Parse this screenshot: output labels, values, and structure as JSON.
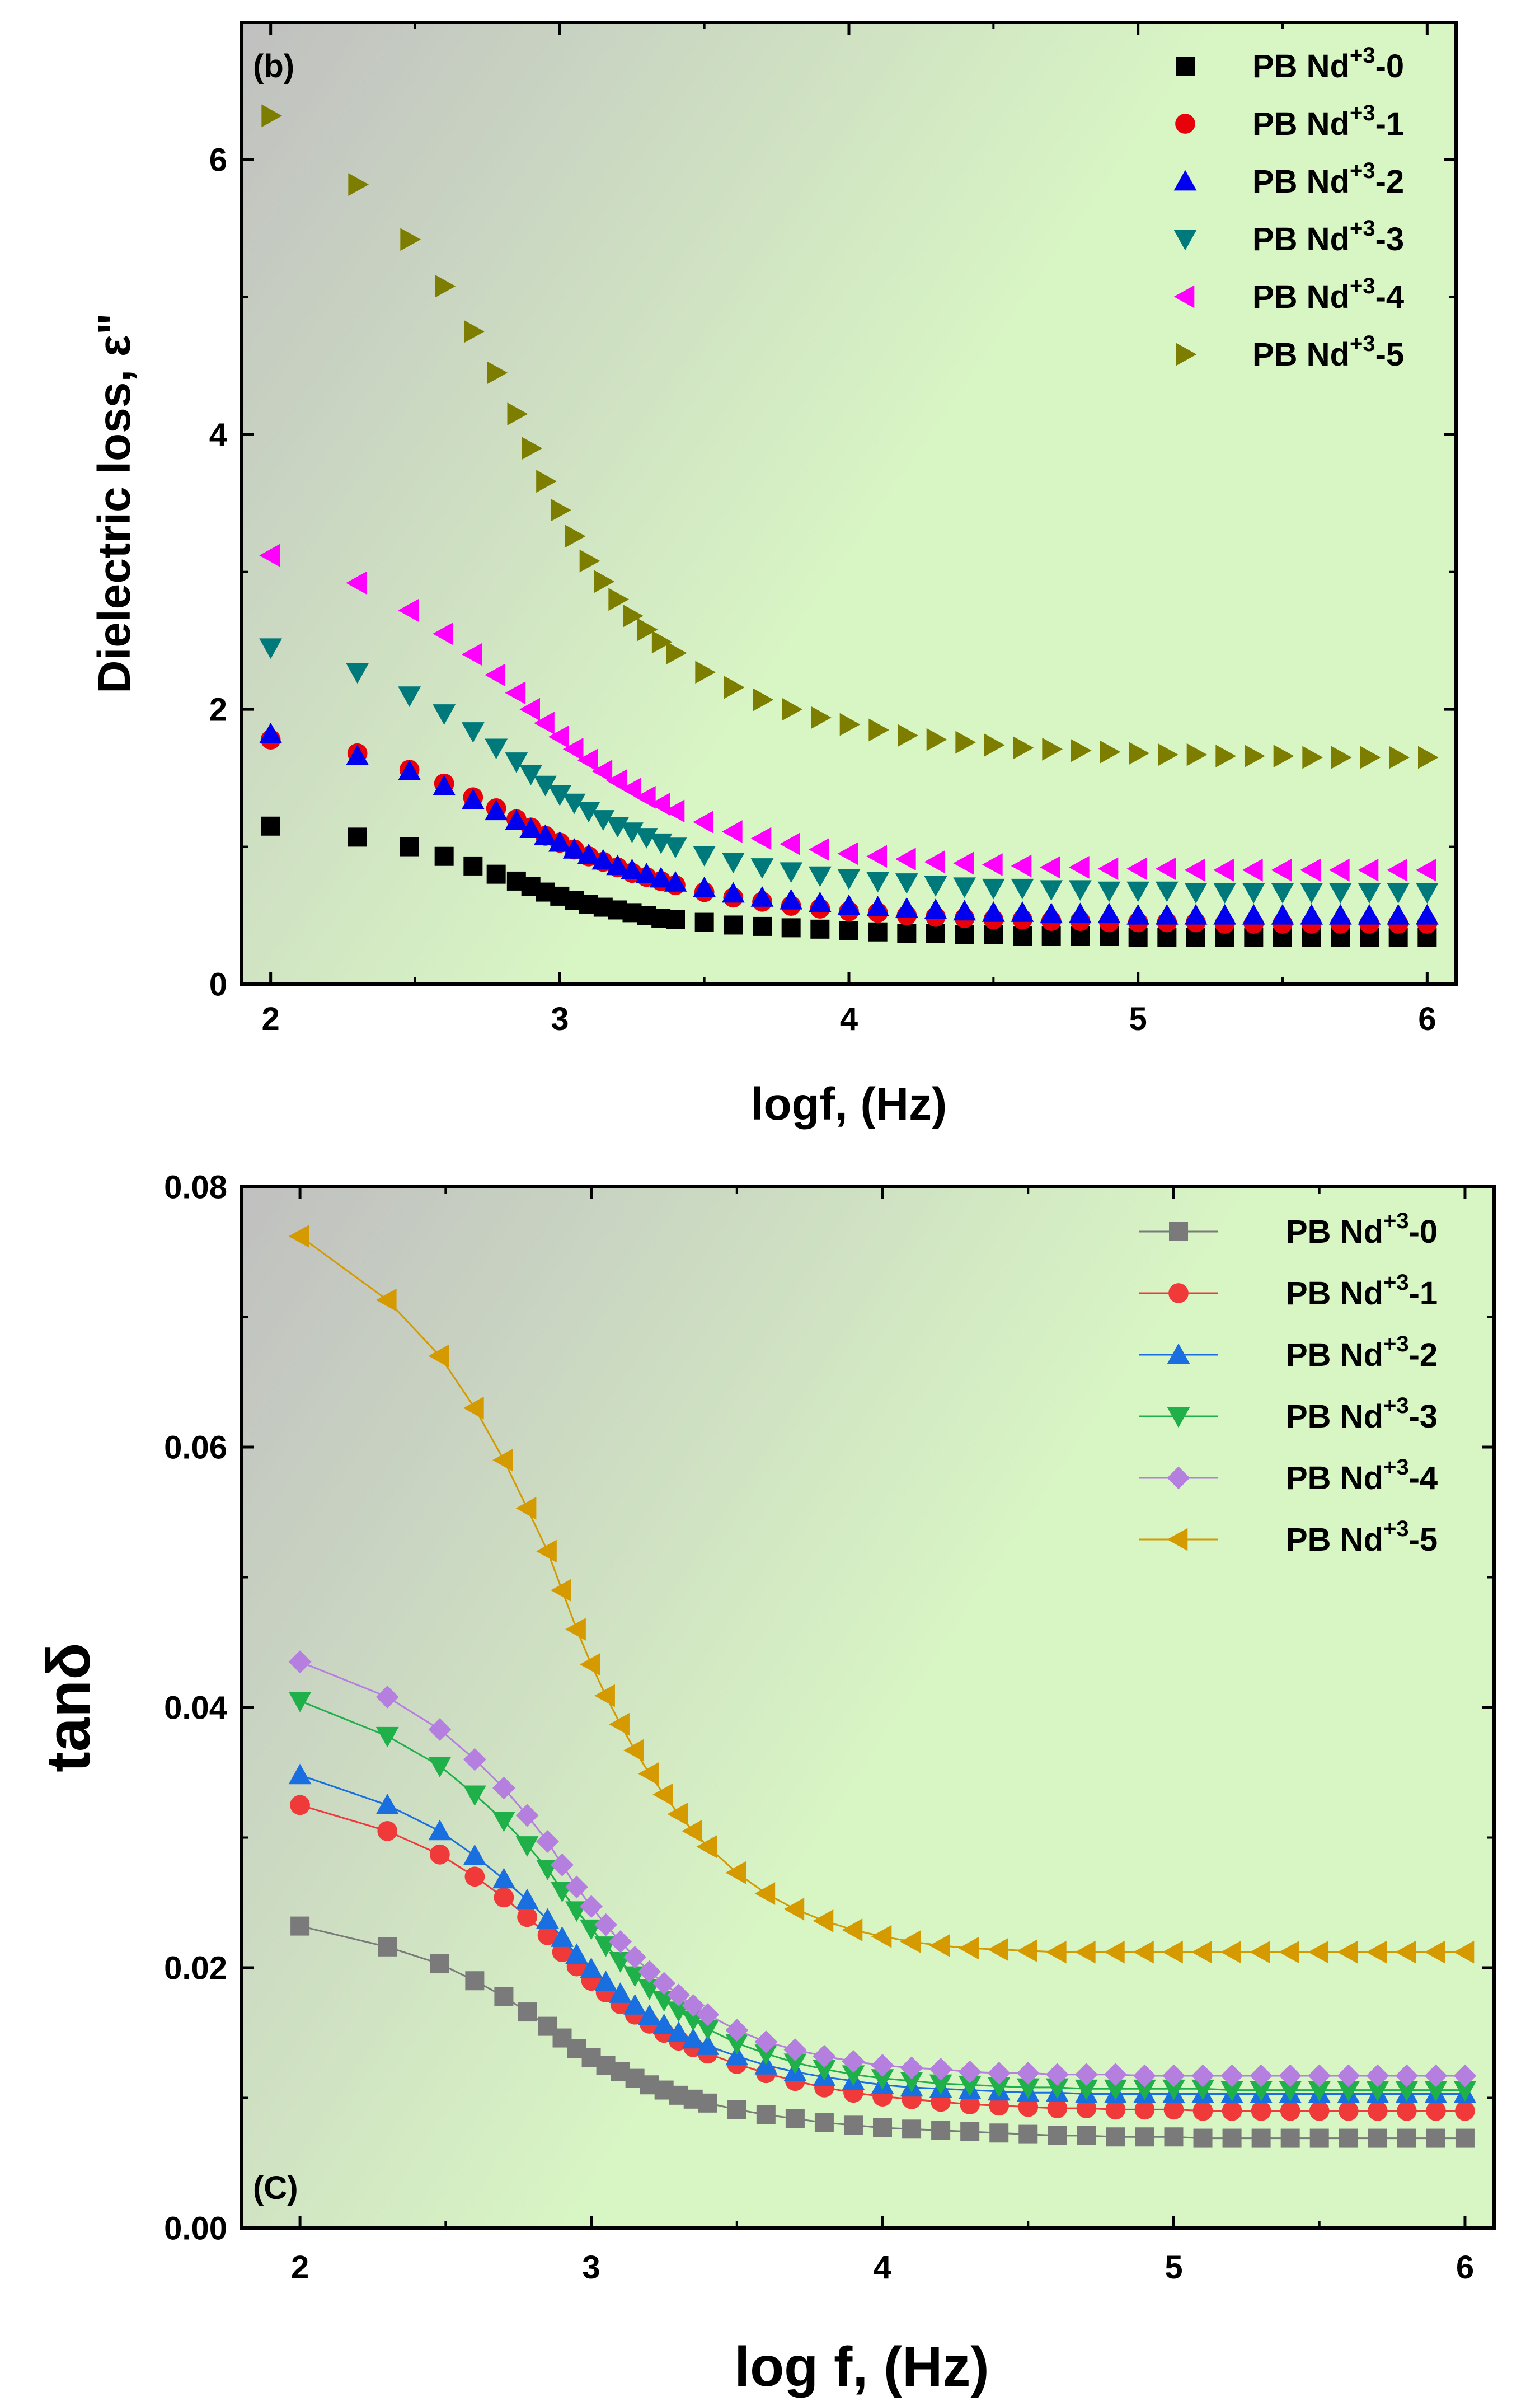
{
  "chart_data": [
    {
      "type": "scatter",
      "panel_label": "(b)",
      "xlabel": "logf, (Hz)",
      "ylabel": "Dielectric loss, ε\"",
      "xlim": [
        1.9,
        6.1
      ],
      "ylim": [
        0,
        7
      ],
      "xticks": [
        2,
        3,
        4,
        5,
        6
      ],
      "yticks": [
        0,
        2,
        4,
        6
      ],
      "grid": false,
      "legend_position": "top-right",
      "background_gradient": [
        "#c0c0c0",
        "#d8f5c4"
      ],
      "legend_title_parts": {
        "prefix": "PB Nd",
        "superscript": "+3"
      },
      "x": [
        2.0,
        2.3,
        2.48,
        2.6,
        2.7,
        2.78,
        2.85,
        2.9,
        2.95,
        3.0,
        3.05,
        3.1,
        3.15,
        3.2,
        3.25,
        3.3,
        3.35,
        3.4,
        3.5,
        3.6,
        3.7,
        3.8,
        3.9,
        4.0,
        4.1,
        4.2,
        4.3,
        4.4,
        4.5,
        4.6,
        4.7,
        4.8,
        4.9,
        5.0,
        5.1,
        5.2,
        5.3,
        5.4,
        5.5,
        5.6,
        5.7,
        5.8,
        5.9,
        6.0
      ],
      "series": [
        {
          "name": "PB Nd+3-0",
          "marker": "square",
          "color": "#000000",
          "values": [
            1.15,
            1.07,
            1.0,
            0.93,
            0.86,
            0.8,
            0.75,
            0.71,
            0.67,
            0.64,
            0.61,
            0.58,
            0.56,
            0.54,
            0.52,
            0.5,
            0.48,
            0.47,
            0.45,
            0.43,
            0.42,
            0.41,
            0.4,
            0.39,
            0.38,
            0.37,
            0.37,
            0.36,
            0.36,
            0.35,
            0.35,
            0.35,
            0.35,
            0.34,
            0.34,
            0.34,
            0.34,
            0.34,
            0.34,
            0.34,
            0.34,
            0.34,
            0.34,
            0.34
          ]
        },
        {
          "name": "PB Nd+3-1",
          "marker": "circle",
          "color": "#e8000b",
          "values": [
            1.78,
            1.68,
            1.56,
            1.46,
            1.36,
            1.28,
            1.2,
            1.14,
            1.08,
            1.03,
            0.98,
            0.93,
            0.89,
            0.85,
            0.81,
            0.78,
            0.75,
            0.72,
            0.67,
            0.63,
            0.6,
            0.57,
            0.55,
            0.53,
            0.52,
            0.5,
            0.49,
            0.48,
            0.47,
            0.47,
            0.46,
            0.46,
            0.45,
            0.45,
            0.45,
            0.45,
            0.44,
            0.44,
            0.44,
            0.44,
            0.44,
            0.44,
            0.44,
            0.44
          ]
        },
        {
          "name": "PB Nd+3-2",
          "marker": "triangle-up",
          "color": "#0000ee",
          "values": [
            1.82,
            1.66,
            1.55,
            1.44,
            1.34,
            1.26,
            1.19,
            1.13,
            1.08,
            1.03,
            0.98,
            0.94,
            0.9,
            0.86,
            0.83,
            0.8,
            0.77,
            0.74,
            0.7,
            0.66,
            0.63,
            0.61,
            0.59,
            0.57,
            0.56,
            0.55,
            0.54,
            0.53,
            0.52,
            0.52,
            0.51,
            0.51,
            0.51,
            0.5,
            0.5,
            0.5,
            0.5,
            0.5,
            0.5,
            0.5,
            0.5,
            0.5,
            0.5,
            0.5
          ]
        },
        {
          "name": "PB Nd+3-3",
          "marker": "triangle-down",
          "color": "#00797a",
          "values": [
            2.45,
            2.27,
            2.1,
            1.97,
            1.84,
            1.72,
            1.62,
            1.53,
            1.45,
            1.38,
            1.32,
            1.26,
            1.2,
            1.15,
            1.11,
            1.07,
            1.03,
            1.0,
            0.94,
            0.89,
            0.85,
            0.82,
            0.79,
            0.77,
            0.75,
            0.74,
            0.72,
            0.71,
            0.7,
            0.7,
            0.69,
            0.69,
            0.68,
            0.68,
            0.68,
            0.67,
            0.67,
            0.67,
            0.67,
            0.67,
            0.67,
            0.67,
            0.67,
            0.67
          ]
        },
        {
          "name": "PB Nd+3-4",
          "marker": "triangle-left",
          "color": "#ff00ff",
          "values": [
            3.12,
            2.92,
            2.72,
            2.55,
            2.4,
            2.25,
            2.12,
            2.0,
            1.9,
            1.8,
            1.71,
            1.63,
            1.55,
            1.48,
            1.42,
            1.36,
            1.31,
            1.26,
            1.18,
            1.11,
            1.06,
            1.02,
            0.98,
            0.95,
            0.93,
            0.91,
            0.89,
            0.88,
            0.87,
            0.86,
            0.85,
            0.85,
            0.84,
            0.84,
            0.84,
            0.83,
            0.83,
            0.83,
            0.83,
            0.83,
            0.83,
            0.83,
            0.83,
            0.83
          ]
        },
        {
          "name": "PB Nd+3-5",
          "marker": "triangle-right",
          "color": "#7d7d00",
          "values": [
            6.32,
            5.82,
            5.42,
            5.08,
            4.75,
            4.45,
            4.15,
            3.9,
            3.66,
            3.45,
            3.26,
            3.08,
            2.93,
            2.8,
            2.68,
            2.58,
            2.49,
            2.41,
            2.27,
            2.16,
            2.07,
            2.0,
            1.94,
            1.89,
            1.85,
            1.81,
            1.78,
            1.76,
            1.74,
            1.72,
            1.71,
            1.7,
            1.69,
            1.68,
            1.67,
            1.67,
            1.66,
            1.66,
            1.66,
            1.65,
            1.65,
            1.65,
            1.65,
            1.65
          ]
        }
      ]
    },
    {
      "type": "line",
      "panel_label": "(C)",
      "xlabel": "log f, (Hz)",
      "ylabel": "tanδ",
      "xlim": [
        1.8,
        6.1
      ],
      "ylim": [
        0,
        0.08
      ],
      "xticks": [
        2,
        3,
        4,
        5,
        6
      ],
      "yticks": [
        0.0,
        0.02,
        0.04,
        0.06,
        0.08
      ],
      "ytick_labels": [
        "0.00",
        "0.02",
        "0.04",
        "0.06",
        "0.08"
      ],
      "grid": false,
      "legend_position": "top-right",
      "background_gradient": [
        "#c0c0c0",
        "#d8f5c4"
      ],
      "legend_title_parts": {
        "prefix": "PB Nd",
        "superscript": "+3"
      },
      "x": [
        2.0,
        2.3,
        2.48,
        2.6,
        2.7,
        2.78,
        2.85,
        2.9,
        2.95,
        3.0,
        3.05,
        3.1,
        3.15,
        3.2,
        3.25,
        3.3,
        3.35,
        3.4,
        3.5,
        3.6,
        3.7,
        3.8,
        3.9,
        4.0,
        4.1,
        4.2,
        4.3,
        4.4,
        4.5,
        4.6,
        4.7,
        4.8,
        4.9,
        5.0,
        5.1,
        5.2,
        5.3,
        5.4,
        5.5,
        5.6,
        5.7,
        5.8,
        5.9,
        6.0
      ],
      "series": [
        {
          "name": "PB Nd+3-0",
          "marker": "square",
          "color": "#7a7a7a",
          "values": [
            0.0232,
            0.0216,
            0.0203,
            0.019,
            0.0178,
            0.0166,
            0.0155,
            0.0146,
            0.0138,
            0.0131,
            0.0125,
            0.012,
            0.0115,
            0.011,
            0.0106,
            0.0102,
            0.0099,
            0.0096,
            0.0091,
            0.0087,
            0.0084,
            0.0081,
            0.0079,
            0.0077,
            0.0076,
            0.0075,
            0.0074,
            0.0073,
            0.0072,
            0.0071,
            0.0071,
            0.007,
            0.007,
            0.007,
            0.0069,
            0.0069,
            0.0069,
            0.0069,
            0.0069,
            0.0069,
            0.0069,
            0.0069,
            0.0069,
            0.0069
          ]
        },
        {
          "name": "PB Nd+3-1",
          "marker": "circle",
          "color": "#f03a3a",
          "values": [
            0.0325,
            0.0305,
            0.0287,
            0.027,
            0.0254,
            0.0239,
            0.0225,
            0.0212,
            0.0201,
            0.019,
            0.0181,
            0.0172,
            0.0164,
            0.0157,
            0.015,
            0.0144,
            0.0139,
            0.0134,
            0.0126,
            0.0119,
            0.0113,
            0.0108,
            0.0104,
            0.0101,
            0.0099,
            0.0097,
            0.0095,
            0.0094,
            0.0093,
            0.0092,
            0.0092,
            0.0091,
            0.0091,
            0.0091,
            0.009,
            0.009,
            0.009,
            0.009,
            0.009,
            0.009,
            0.009,
            0.009,
            0.009,
            0.009
          ]
        },
        {
          "name": "PB Nd+3-2",
          "marker": "triangle-up",
          "color": "#1a6fe0",
          "values": [
            0.0348,
            0.0325,
            0.0305,
            0.0286,
            0.0268,
            0.0252,
            0.0237,
            0.0223,
            0.021,
            0.0199,
            0.0189,
            0.018,
            0.0171,
            0.0163,
            0.0156,
            0.015,
            0.0145,
            0.014,
            0.0132,
            0.0125,
            0.012,
            0.0116,
            0.0113,
            0.011,
            0.0108,
            0.0107,
            0.0106,
            0.0105,
            0.0104,
            0.0104,
            0.0103,
            0.0103,
            0.0103,
            0.0103,
            0.0103,
            0.0103,
            0.0103,
            0.0103,
            0.0103,
            0.0103,
            0.0103,
            0.0103,
            0.0103,
            0.0103
          ]
        },
        {
          "name": "PB Nd+3-3",
          "marker": "triangle-down",
          "color": "#1fb04a",
          "values": [
            0.0405,
            0.0378,
            0.0355,
            0.0333,
            0.0313,
            0.0294,
            0.0276,
            0.0259,
            0.0244,
            0.023,
            0.0217,
            0.0205,
            0.0194,
            0.0184,
            0.0175,
            0.0167,
            0.016,
            0.0153,
            0.0142,
            0.0134,
            0.0127,
            0.0122,
            0.0118,
            0.0115,
            0.0113,
            0.0111,
            0.011,
            0.0109,
            0.0108,
            0.0108,
            0.0107,
            0.0107,
            0.0107,
            0.0107,
            0.0107,
            0.0106,
            0.0106,
            0.0106,
            0.0106,
            0.0106,
            0.0106,
            0.0106,
            0.0106,
            0.0106
          ]
        },
        {
          "name": "PB Nd+3-4",
          "marker": "diamond",
          "color": "#b57fe0",
          "values": [
            0.0435,
            0.0408,
            0.0383,
            0.036,
            0.0338,
            0.0317,
            0.0297,
            0.0279,
            0.0262,
            0.0247,
            0.0233,
            0.022,
            0.0208,
            0.0197,
            0.0188,
            0.0179,
            0.0171,
            0.0164,
            0.0152,
            0.0143,
            0.0137,
            0.0132,
            0.0128,
            0.0125,
            0.0123,
            0.0122,
            0.012,
            0.0119,
            0.0119,
            0.0118,
            0.0118,
            0.0118,
            0.0117,
            0.0117,
            0.0117,
            0.0117,
            0.0117,
            0.0117,
            0.0117,
            0.0117,
            0.0117,
            0.0117,
            0.0117,
            0.0117
          ]
        },
        {
          "name": "PB Nd+3-5",
          "marker": "triangle-left",
          "color": "#d49a00",
          "values": [
            0.0762,
            0.0713,
            0.067,
            0.063,
            0.059,
            0.0553,
            0.052,
            0.049,
            0.046,
            0.0433,
            0.0409,
            0.0387,
            0.0367,
            0.0349,
            0.0333,
            0.0318,
            0.0305,
            0.0293,
            0.0273,
            0.0257,
            0.0245,
            0.0236,
            0.0229,
            0.0224,
            0.022,
            0.0217,
            0.0215,
            0.0214,
            0.0213,
            0.0212,
            0.0212,
            0.0212,
            0.0212,
            0.0212,
            0.0212,
            0.0212,
            0.0212,
            0.0212,
            0.0212,
            0.0212,
            0.0212,
            0.0212,
            0.0212,
            0.0212
          ]
        }
      ]
    }
  ]
}
